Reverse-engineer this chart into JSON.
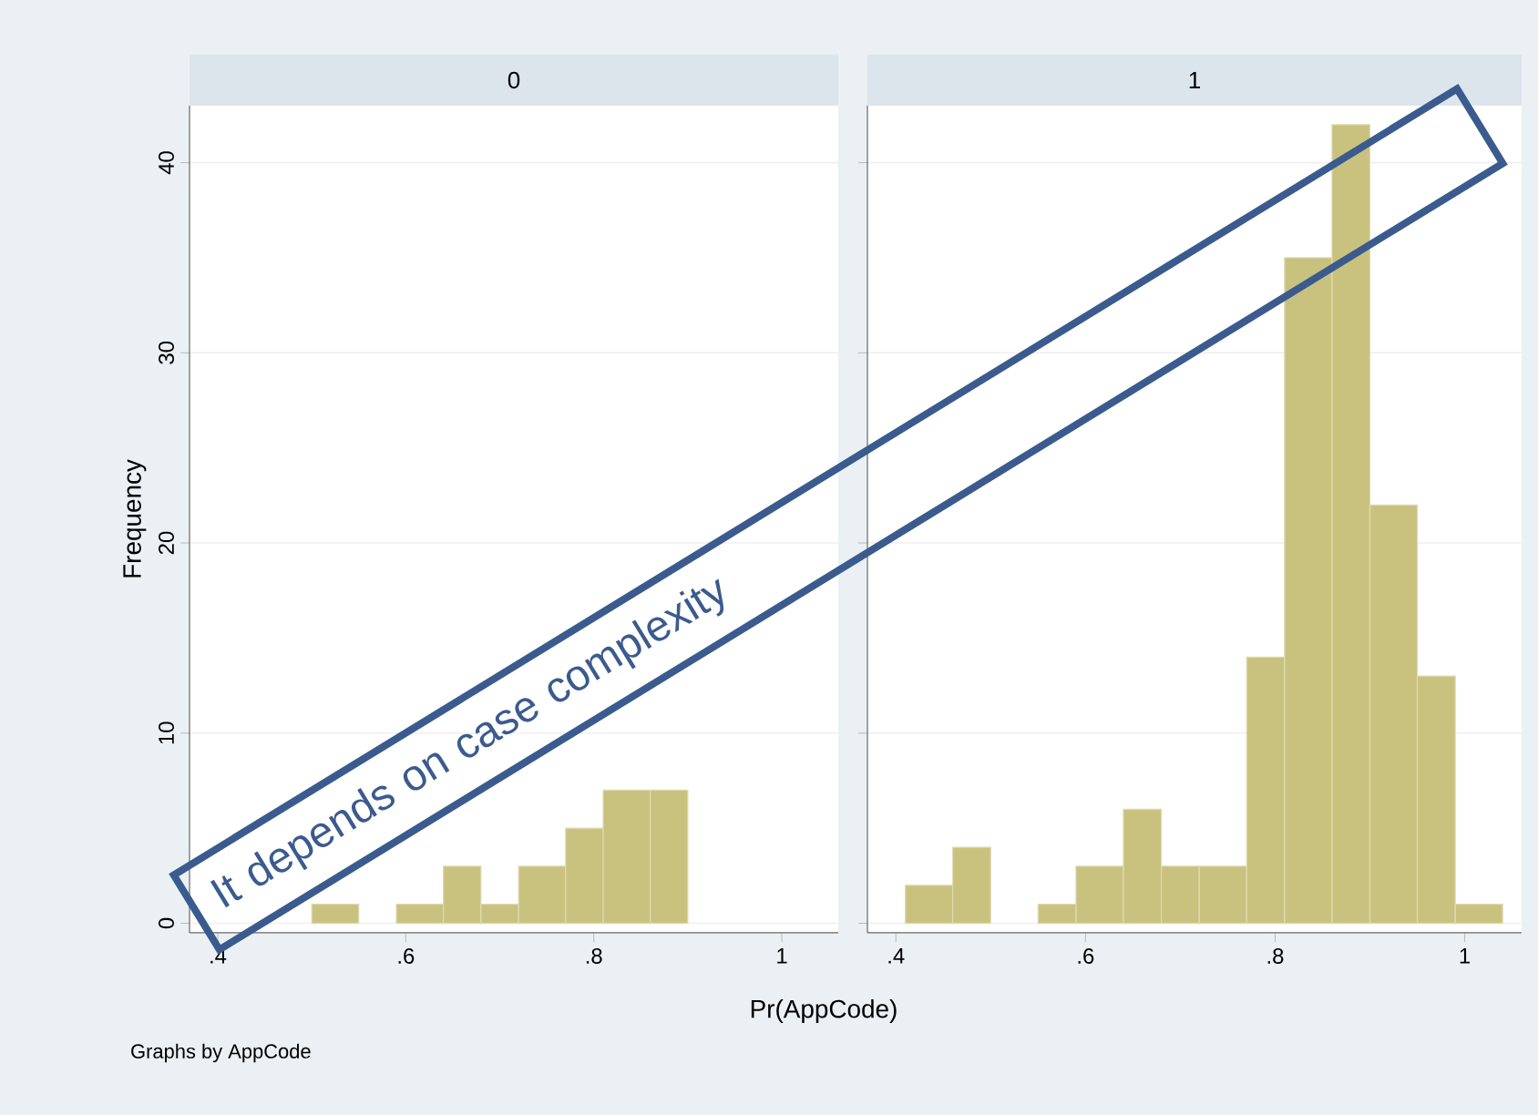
{
  "chart_data": [
    {
      "type": "histogram",
      "title": "0",
      "xlabel": "Pr(AppCode)",
      "ylabel": "Frequency",
      "annotations": [
        "Graphs by AppCode",
        "It depends on case complexity"
      ],
      "bins": [
        0.5,
        0.55,
        0.59,
        0.64,
        0.68,
        0.72,
        0.77,
        0.81,
        0.86,
        0.9
      ],
      "values": [
        1,
        0,
        1,
        3,
        1,
        3,
        5,
        7,
        7
      ],
      "color": "#c9c27f",
      "xlim": [
        0.37,
        1.06
      ],
      "ylim": [
        -0.5,
        43
      ],
      "xticks": [
        {
          "value": 0.4,
          "label": ".4"
        },
        {
          "value": 0.6,
          "label": ".6"
        },
        {
          "value": 0.8,
          "label": ".8"
        },
        1
      ],
      "yticks": [
        0,
        10,
        20,
        30,
        40
      ],
      "grid": "y"
    },
    {
      "type": "histogram",
      "title": "1",
      "bins": [
        0.41,
        0.46,
        0.5,
        0.55,
        0.59,
        0.64,
        0.68,
        0.72,
        0.77,
        0.81,
        0.86,
        0.9,
        0.95,
        0.99,
        1.04
      ],
      "values": [
        2,
        4,
        0,
        1,
        3,
        6,
        3,
        3,
        14,
        35,
        42,
        22,
        13,
        1
      ],
      "color": "#c9c27f",
      "xlim": [
        0.37,
        1.06
      ],
      "ylim": [
        -0.5,
        43
      ],
      "xticks": [
        {
          "value": 0.4,
          "label": ".4"
        },
        {
          "value": 0.6,
          "label": ".6"
        },
        {
          "value": 0.8,
          "label": ".8"
        },
        1
      ],
      "yticks": [
        0,
        10,
        20,
        30,
        40
      ],
      "grid": "y",
      "tick_labels": "x"
    }
  ]
}
